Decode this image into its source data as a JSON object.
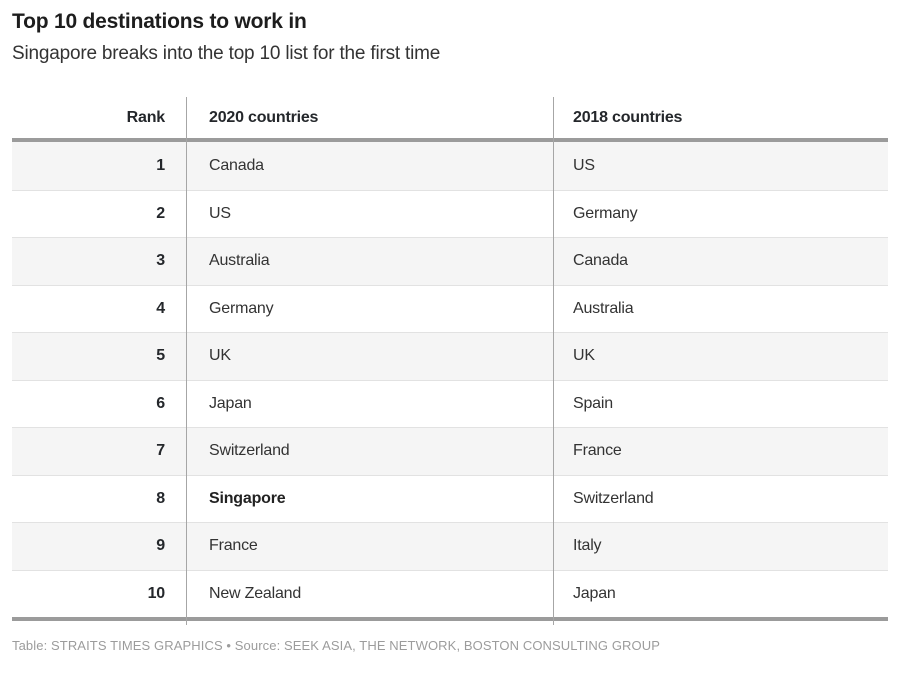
{
  "header": {
    "title": "Top 10 destinations to work in",
    "subtitle": "Singapore breaks into the top 10 list for the first time"
  },
  "footer": {
    "attribution": "Table: STRAITS TIMES GRAPHICS • Source: SEEK ASIA, THE NETWORK, BOSTON CONSULTING GROUP"
  },
  "chart_data": {
    "type": "table",
    "title": "Top 10 destinations to work in",
    "subtitle": "Singapore breaks into the top 10 list for the first time",
    "columns": [
      "Rank",
      "2020 countries",
      "2018 countries"
    ],
    "rows": [
      {
        "rank": "1",
        "y2020": "Canada",
        "y2018": "US"
      },
      {
        "rank": "2",
        "y2020": "US",
        "y2018": "Germany"
      },
      {
        "rank": "3",
        "y2020": "Australia",
        "y2018": "Canada"
      },
      {
        "rank": "4",
        "y2020": "Germany",
        "y2018": "Australia"
      },
      {
        "rank": "5",
        "y2020": "UK",
        "y2018": "UK"
      },
      {
        "rank": "6",
        "y2020": "Japan",
        "y2018": "Spain"
      },
      {
        "rank": "7",
        "y2020": "Switzerland",
        "y2018": "France"
      },
      {
        "rank": "8",
        "y2020": "Singapore",
        "y2018": "Switzerland",
        "emphasis": "y2020"
      },
      {
        "rank": "9",
        "y2020": "France",
        "y2018": "Italy"
      },
      {
        "rank": "10",
        "y2020": "New Zealand",
        "y2018": "Japan"
      }
    ],
    "layout": {
      "striped": true,
      "stripe_first_row": true,
      "legend": "none",
      "grid": "column-dividers"
    },
    "colors": {
      "title_text": "#1d1d1d",
      "body_text": "#333333",
      "header_text": "#24272b",
      "rule": "#9b9b9b",
      "column_divider": "#a6a6a6",
      "row_stripe": "#f5f5f5",
      "row_border": "#e2e2e2",
      "attribution_text": "#9c9c9c"
    }
  }
}
